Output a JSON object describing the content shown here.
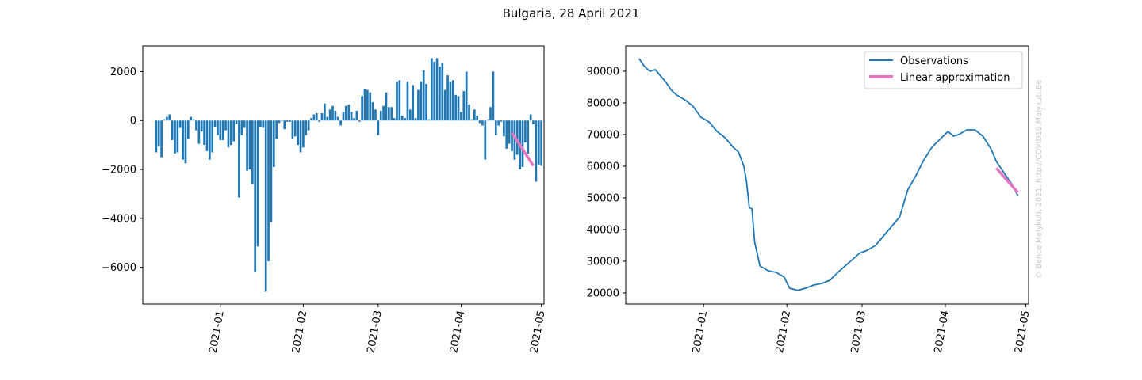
{
  "figure": {
    "title": "Bulgaria, 28 April 2021",
    "watermark": "© Bence Melykuti, 2021. http://COVID19.Melykuti.Be"
  },
  "colors": {
    "bars": "#1f77b4",
    "observations": "#1f77b4",
    "linear_approximation": "#e377c2"
  },
  "chart_data": [
    {
      "type": "bar",
      "title": "",
      "xlabel": "",
      "ylabel": "",
      "x_axis": "date",
      "xlim": [
        "2020-12-03",
        "2021-05-02"
      ],
      "ylim": [
        -7500,
        3050
      ],
      "x_ticks": [
        "2021-01",
        "2021-02",
        "2021-03",
        "2021-04",
        "2021-05"
      ],
      "y_ticks": [
        -6000,
        -4000,
        -2000,
        0,
        2000
      ],
      "series": [
        {
          "start_date": "2020-12-08",
          "values": [
            -1300,
            -1050,
            -1500,
            50,
            150,
            250,
            -800,
            -1350,
            -1300,
            -300,
            -1600,
            -1750,
            -750,
            150,
            50,
            -400,
            -950,
            -450,
            -1000,
            -1250,
            -1600,
            -1300,
            -250,
            -600,
            -800,
            -800,
            -400,
            -1100,
            -1000,
            -850,
            -150,
            -3150,
            -600,
            -300,
            -2050,
            -2000,
            -2600,
            -6200,
            -5150,
            -250,
            -300,
            -7000,
            -5750,
            -4150,
            -1900,
            -750,
            -100,
            0,
            -350,
            -50,
            -50,
            -750,
            -650,
            -1000,
            -1300,
            -1100,
            -600,
            -400,
            100,
            250,
            300,
            -50,
            300,
            700,
            150,
            450,
            600,
            400,
            150,
            -200,
            350,
            600,
            650,
            350,
            100,
            400,
            -50,
            1000,
            1300,
            1250,
            1150,
            750,
            450,
            -600,
            400,
            600,
            1150,
            550,
            550,
            100,
            1600,
            1650,
            200,
            100,
            1600,
            450,
            1450,
            100,
            1250,
            1600,
            2050,
            1500,
            50,
            2550,
            2400,
            2550,
            2200,
            2350,
            1250,
            1850,
            1600,
            1650,
            1050,
            1000,
            350,
            1200,
            2000,
            650,
            50,
            450,
            200,
            -100,
            -200,
            -1600,
            50,
            550,
            2000,
            -600,
            -200,
            -50,
            -650,
            -1150,
            -950,
            -1250,
            -1600,
            -1400,
            -2000,
            -1900,
            -900,
            -1350,
            250,
            -150,
            -2500,
            -1800,
            -1850
          ],
          "name": ""
        },
        {
          "start_date": "2021-04-20",
          "values": [
            -500,
            -1850
          ],
          "x": [
            "2021-04-20",
            "2021-04-28"
          ],
          "name": ""
        }
      ]
    },
    {
      "type": "line",
      "title": "",
      "xlabel": "",
      "ylabel": "",
      "x_axis": "date",
      "xlim": [
        "2020-12-03",
        "2021-05-02"
      ],
      "ylim": [
        16500,
        98000
      ],
      "x_ticks": [
        "2021-01",
        "2021-02",
        "2021-03",
        "2021-04",
        "2021-05"
      ],
      "y_ticks": [
        20000,
        30000,
        40000,
        50000,
        60000,
        70000,
        80000,
        90000
      ],
      "legend": {
        "position": "upper right",
        "entries": [
          "Observations",
          "Linear approximation"
        ]
      },
      "series": [
        {
          "name": "Observations",
          "x": [
            "2020-12-08",
            "2020-12-10",
            "2020-12-12",
            "2020-12-14",
            "2020-12-16",
            "2020-12-18",
            "2020-12-20",
            "2020-12-22",
            "2020-12-25",
            "2020-12-28",
            "2020-12-31",
            "2021-01-03",
            "2021-01-06",
            "2021-01-09",
            "2021-01-12",
            "2021-01-14",
            "2021-01-16",
            "2021-01-17",
            "2021-01-18",
            "2021-01-19",
            "2021-01-20",
            "2021-01-22",
            "2021-01-25",
            "2021-01-28",
            "2021-01-31",
            "2021-02-02",
            "2021-02-05",
            "2021-02-08",
            "2021-02-11",
            "2021-02-14",
            "2021-02-17",
            "2021-02-20",
            "2021-02-24",
            "2021-02-28",
            "2021-03-03",
            "2021-03-06",
            "2021-03-09",
            "2021-03-12",
            "2021-03-15",
            "2021-03-18",
            "2021-03-21",
            "2021-03-24",
            "2021-03-27",
            "2021-03-30",
            "2021-04-02",
            "2021-04-04",
            "2021-04-06",
            "2021-04-09",
            "2021-04-12",
            "2021-04-15",
            "2021-04-18",
            "2021-04-20",
            "2021-04-22",
            "2021-04-24",
            "2021-04-26",
            "2021-04-28"
          ],
          "values": [
            94000,
            91500,
            90000,
            90500,
            88500,
            86500,
            84000,
            82500,
            81000,
            79000,
            75500,
            74000,
            71000,
            69000,
            66000,
            64500,
            60000,
            55000,
            47000,
            46500,
            36000,
            28500,
            27000,
            26500,
            25000,
            21500,
            20800,
            21500,
            22500,
            23000,
            24000,
            26500,
            29500,
            32500,
            33500,
            35000,
            38000,
            41000,
            44000,
            52500,
            57000,
            62000,
            66000,
            68500,
            71000,
            69500,
            70000,
            71500,
            71500,
            69500,
            65500,
            61500,
            59000,
            56500,
            54000,
            50700
          ]
        },
        {
          "name": "Linear approximation",
          "x": [
            "2021-04-20",
            "2021-04-28"
          ],
          "values": [
            59400,
            51700
          ]
        }
      ]
    }
  ]
}
